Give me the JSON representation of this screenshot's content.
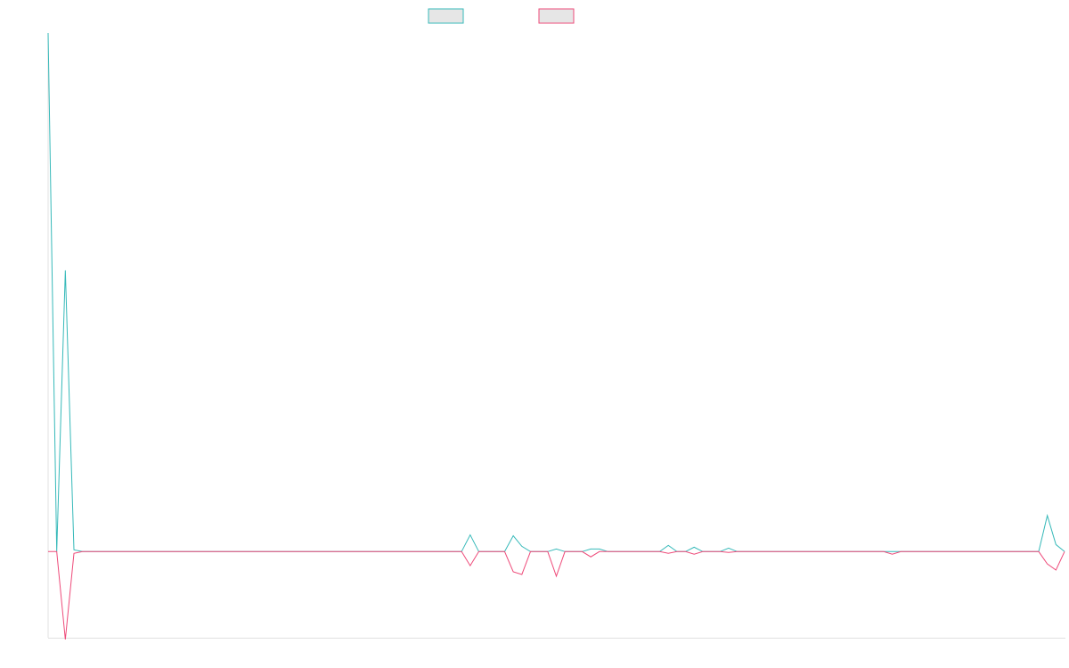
{
  "chart_data": {
    "type": "line",
    "title": "",
    "xlabel": "",
    "ylabel": "",
    "grid": false,
    "legend_position": "top-center",
    "colors": {
      "positive_series": "#36b9b9",
      "negative_series": "#ee4b7a",
      "legend_fill": "#e6e6e6",
      "axis": "#e0e0e0"
    },
    "ylim": [
      -100,
      590
    ],
    "x": [
      0,
      1,
      2,
      3,
      4,
      5,
      6,
      7,
      8,
      9,
      10,
      11,
      12,
      13,
      14,
      15,
      16,
      17,
      18,
      19,
      20,
      21,
      22,
      23,
      24,
      25,
      26,
      27,
      28,
      29,
      30,
      31,
      32,
      33,
      34,
      35,
      36,
      37,
      38,
      39,
      40,
      41,
      42,
      43,
      44,
      45,
      46,
      47,
      48,
      49,
      50,
      51,
      52,
      53,
      54,
      55,
      56,
      57,
      58,
      59,
      60,
      61,
      62,
      63,
      64,
      65,
      66,
      67,
      68,
      69,
      70,
      71,
      72,
      73,
      74,
      75,
      76,
      77,
      78,
      79,
      80,
      81,
      82,
      83,
      84,
      85,
      86,
      87,
      88,
      89,
      90,
      91,
      92,
      93,
      94,
      95,
      96,
      97,
      98,
      99,
      100,
      101,
      102,
      103,
      104,
      105,
      106,
      107,
      108,
      109,
      110,
      111,
      112,
      113,
      114,
      115,
      116,
      117,
      118
    ],
    "series": [
      {
        "name": "",
        "values": [
          590,
          0,
          320,
          2,
          0,
          0,
          0,
          0,
          0,
          0,
          0,
          0,
          0,
          0,
          0,
          0,
          0,
          0,
          0,
          0,
          0,
          0,
          0,
          0,
          0,
          0,
          0,
          0,
          0,
          0,
          0,
          0,
          0,
          0,
          0,
          0,
          0,
          0,
          0,
          0,
          0,
          0,
          0,
          0,
          0,
          0,
          0,
          0,
          0,
          19,
          0,
          0,
          0,
          0,
          18,
          6,
          0,
          0,
          0,
          3,
          0,
          0,
          0,
          3,
          3,
          0,
          0,
          0,
          0,
          0,
          0,
          0,
          7,
          0,
          0,
          5,
          0,
          0,
          0,
          4,
          0,
          0,
          0,
          0,
          0,
          0,
          0,
          0,
          0,
          0,
          0,
          0,
          0,
          0,
          0,
          0,
          0,
          0,
          0,
          0,
          0,
          0,
          0,
          0,
          0,
          0,
          0,
          0,
          0,
          0,
          0,
          0,
          0,
          0,
          0,
          0,
          41,
          8,
          0
        ]
      },
      {
        "name": "",
        "values": [
          0,
          0,
          -100,
          -2,
          0,
          0,
          0,
          0,
          0,
          0,
          0,
          0,
          0,
          0,
          0,
          0,
          0,
          0,
          0,
          0,
          0,
          0,
          0,
          0,
          0,
          0,
          0,
          0,
          0,
          0,
          0,
          0,
          0,
          0,
          0,
          0,
          0,
          0,
          0,
          0,
          0,
          0,
          0,
          0,
          0,
          0,
          0,
          0,
          0,
          -16,
          0,
          0,
          0,
          0,
          -23,
          -26,
          0,
          0,
          0,
          -28,
          0,
          0,
          0,
          -6,
          0,
          0,
          0,
          0,
          0,
          0,
          0,
          0,
          -2,
          0,
          0,
          -3,
          0,
          0,
          0,
          -1,
          0,
          0,
          0,
          0,
          0,
          0,
          0,
          0,
          0,
          0,
          0,
          0,
          0,
          0,
          0,
          0,
          0,
          0,
          -3,
          0,
          0,
          0,
          0,
          0,
          0,
          0,
          0,
          0,
          0,
          0,
          0,
          0,
          0,
          0,
          0,
          0,
          -14,
          -21,
          0
        ]
      }
    ]
  }
}
